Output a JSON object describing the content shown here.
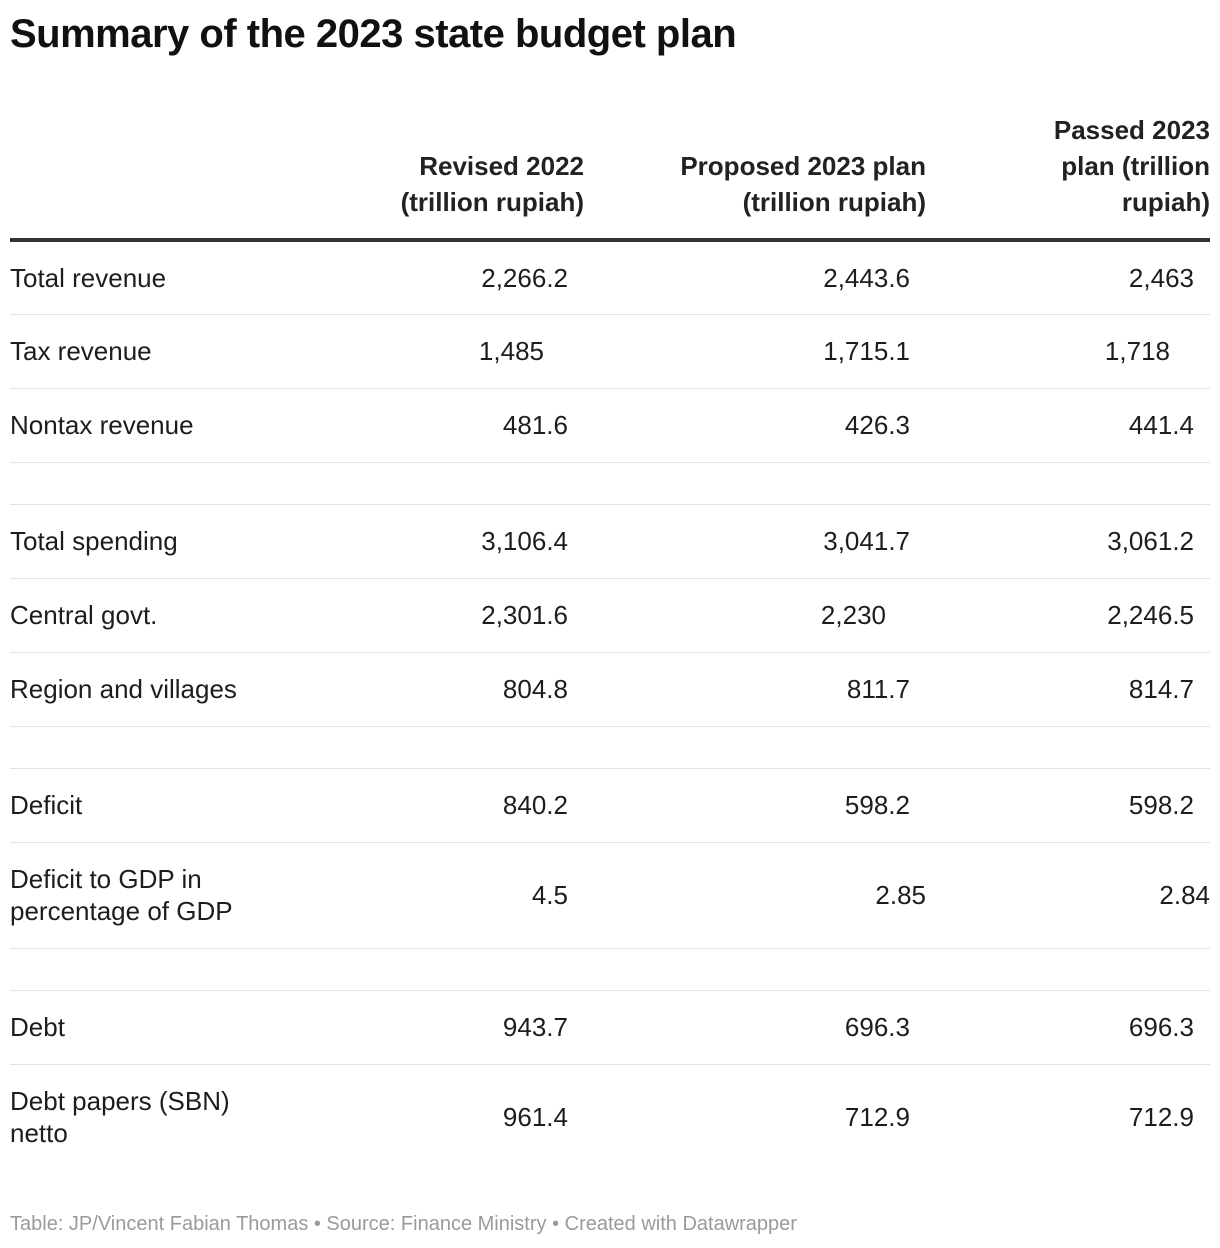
{
  "title": "Summary of the 2023 state budget plan",
  "chart_data": {
    "type": "table",
    "columns": [
      "",
      "Revised 2022 (trillion rupiah)",
      "Proposed 2023 plan (trillion rupiah)",
      "Passed 2023 plan (trillion rupiah)"
    ],
    "rows": [
      {
        "label": "Total revenue",
        "values": [
          "2,266.2",
          "2,443.6",
          "2,463"
        ]
      },
      {
        "label": "Tax revenue",
        "values": [
          "1,485",
          "1,715.1",
          "1,718"
        ]
      },
      {
        "label": "Nontax revenue",
        "values": [
          "481.6",
          "426.3",
          "441.4"
        ]
      },
      {
        "label": "Total spending",
        "values": [
          "3,106.4",
          "3,041.7",
          "3,061.2"
        ]
      },
      {
        "label": "Central govt.",
        "values": [
          "2,301.6",
          "2,230",
          "2,246.5"
        ]
      },
      {
        "label": "Region and villages",
        "values": [
          "804.8",
          "811.7",
          "814.7"
        ]
      },
      {
        "label": "Deficit",
        "values": [
          "840.2",
          "598.2",
          "598.2"
        ]
      },
      {
        "label": "Deficit to GDP in percentage of GDP",
        "values": [
          "4.5",
          "2.85",
          "2.84"
        ]
      },
      {
        "label": "Debt",
        "values": [
          "943.7",
          "696.3",
          "696.3"
        ]
      },
      {
        "label": "Debt papers (SBN) netto",
        "values": [
          "961.4",
          "712.9",
          "712.9"
        ]
      }
    ]
  },
  "footer": "Table: JP/Vincent Fabian Thomas • Source: Finance Ministry • Created with Datawrapper"
}
